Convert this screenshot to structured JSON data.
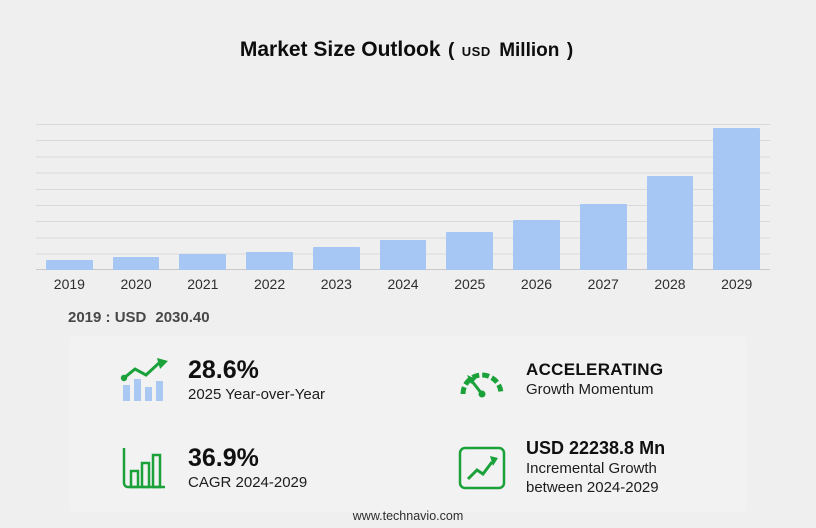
{
  "title": {
    "main": "Market Size Outlook",
    "open_paren": "(",
    "currency": "USD",
    "unit": "Million",
    "close_paren": ")"
  },
  "chart_data": {
    "type": "bar",
    "title": "Market Size Outlook (USD Million)",
    "categories": [
      "2019",
      "2020",
      "2021",
      "2022",
      "2023",
      "2024",
      "2025",
      "2026",
      "2027",
      "2028",
      "2029"
    ],
    "values": [
      2030.4,
      2560,
      3120,
      3580,
      4530,
      5840,
      7510,
      9800,
      13100,
      18600,
      28080
    ],
    "xlabel": "",
    "ylabel": "USD Million",
    "ylim": [
      0,
      28800
    ],
    "grid": "horizontal",
    "legend": "none"
  },
  "annotation": {
    "year_label": "2019 : USD",
    "value": "2030.40"
  },
  "stats": [
    {
      "icon": "yoy-bar-chart-icon",
      "value": "28.6%",
      "line1": "2025 Year-over-Year"
    },
    {
      "icon": "speedometer-icon",
      "value": "ACCELERATING",
      "line1": "Growth Momentum"
    },
    {
      "icon": "cagr-bars-icon",
      "value": "36.9%",
      "line1": "CAGR 2024-2029"
    },
    {
      "icon": "incremental-growth-icon",
      "value": "USD 22238.8 Mn",
      "line1": "Incremental Growth",
      "line2": "between 2024-2029"
    }
  ],
  "footer": {
    "url": "www.technavio.com"
  },
  "colors": {
    "background": "#efefef",
    "bar": "#a6c6f4",
    "icon_green": "#1ba13a",
    "icon_bar_blue": "#a9c8f2"
  }
}
